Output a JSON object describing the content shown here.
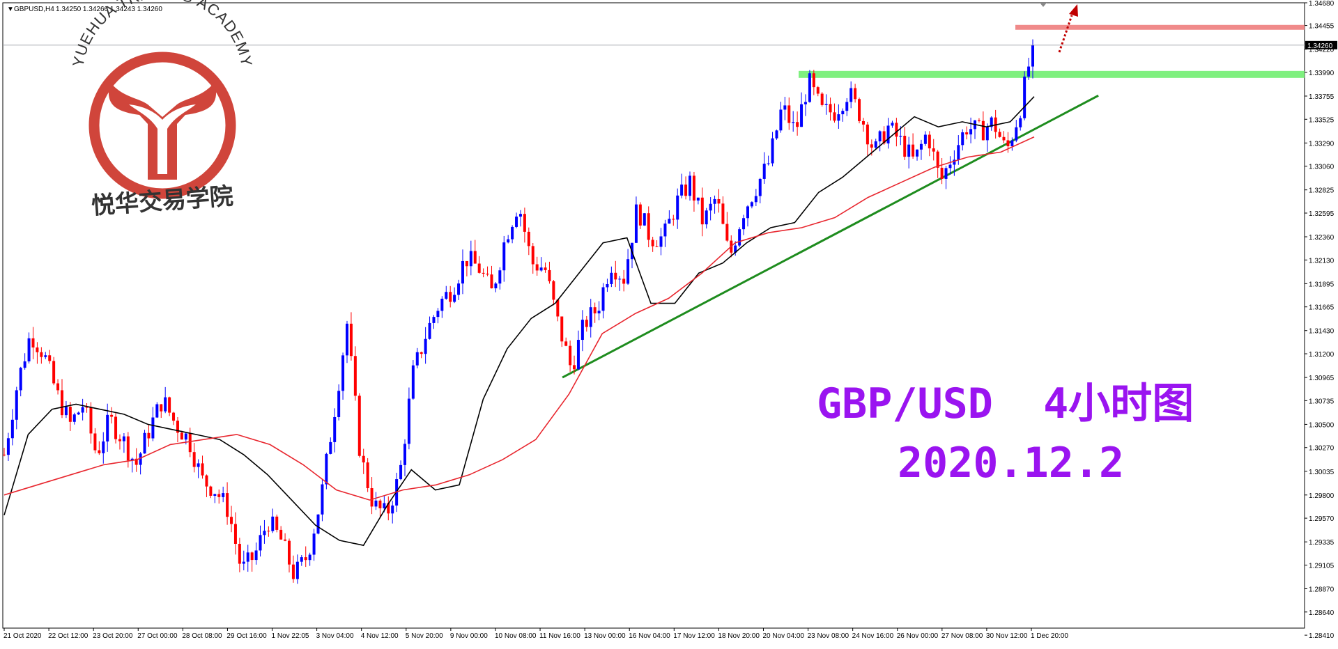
{
  "header": {
    "symbol_label": "GBPUSD,H4",
    "ohlc_label": "1.34250 1.34266 1.34243 1.34260"
  },
  "logo": {
    "arc_text": "YUEHUA TRADING ACADEMY",
    "cn_text": "悦华交易学院",
    "color": "#d0453b"
  },
  "annotation": {
    "line1": "GBP/USD  4小时图",
    "line2": "2020.12.2",
    "color": "#9a14f0"
  },
  "colors": {
    "bull": "#0000ff",
    "bear": "#ff0000",
    "ma_fast": "#000000",
    "ma_slow": "#e8262e",
    "trendline": "#1e8c1e",
    "support": "#7ff07f",
    "resistance": "#f08a8a",
    "arrow": "#c00000"
  },
  "chart_data": {
    "type": "candlestick",
    "symbol": "GBPUSD",
    "timeframe": "H4",
    "last_price": "1.34260",
    "ylim": [
      1.2848,
      1.3468
    ],
    "y_ticks": [
      "1.34680",
      "1.34455",
      "1.34220",
      "1.33990",
      "1.33755",
      "1.33525",
      "1.33290",
      "1.33060",
      "1.32825",
      "1.32595",
      "1.32360",
      "1.32130",
      "1.31895",
      "1.31665",
      "1.31430",
      "1.31200",
      "1.30965",
      "1.30735",
      "1.30500",
      "1.30270",
      "1.30035",
      "1.29800",
      "1.29570",
      "1.29335",
      "1.29105",
      "1.28870",
      "1.28640",
      "1.28410"
    ],
    "x_ticks": [
      "21 Oct 2020",
      "22 Oct 12:00",
      "23 Oct 20:00",
      "27 Oct 00:00",
      "28 Oct 08:00",
      "29 Oct 16:00",
      "1 Nov 22:05",
      "3 Nov 04:00",
      "4 Nov 12:00",
      "5 Nov 20:00",
      "9 Nov 00:00",
      "10 Nov 08:00",
      "11 Nov 16:00",
      "13 Nov 00:00",
      "16 Nov 04:00",
      "17 Nov 12:00",
      "18 Nov 20:00",
      "20 Nov 04:00",
      "23 Nov 08:00",
      "24 Nov 16:00",
      "26 Nov 00:00",
      "27 Nov 08:00",
      "30 Nov 12:00",
      "1 Dec 20:00"
    ],
    "close_path": [
      1.302,
      1.309,
      1.314,
      1.312,
      1.308,
      1.305,
      1.307,
      1.302,
      1.3055,
      1.3035,
      1.301,
      1.3045,
      1.3075,
      1.305,
      1.3035,
      1.2995,
      1.2985,
      1.2965,
      1.2905,
      1.292,
      1.2955,
      1.2935,
      1.29,
      1.292,
      1.2975,
      1.306,
      1.315,
      1.302,
      1.297,
      1.296,
      1.3,
      1.31,
      1.314,
      1.317,
      1.3185,
      1.3215,
      1.3205,
      1.318,
      1.3235,
      1.327,
      1.321,
      1.3205,
      1.315,
      1.3105,
      1.315,
      1.3165,
      1.321,
      1.3195,
      1.3265,
      1.3235,
      1.3235,
      1.327,
      1.329,
      1.325,
      1.3275,
      1.3215,
      1.326,
      1.3285,
      1.331,
      1.3365,
      1.334,
      1.339,
      1.336,
      1.336,
      1.338,
      1.3355,
      1.332,
      1.3345,
      1.333,
      1.331,
      1.334,
      1.329,
      1.332,
      1.3345,
      1.334,
      1.335,
      1.332,
      1.336,
      1.3426
    ],
    "ma_fast": [
      1.296,
      1.304,
      1.3065,
      1.307,
      1.3065,
      1.306,
      1.305,
      1.3045,
      1.304,
      1.3035,
      1.302,
      1.3,
      1.2975,
      1.295,
      1.2935,
      1.293,
      1.297,
      1.3005,
      1.2985,
      1.299,
      1.3075,
      1.3125,
      1.3155,
      1.317,
      1.32,
      1.323,
      1.3235,
      1.317,
      1.317,
      1.32,
      1.321,
      1.323,
      1.3245,
      1.325,
      1.328,
      1.3295,
      1.3315,
      1.3335,
      1.3355,
      1.3345,
      1.335,
      1.3345,
      1.335,
      1.3375
    ],
    "ma_slow": [
      1.298,
      1.299,
      1.3,
      1.301,
      1.3015,
      1.303,
      1.3035,
      1.304,
      1.303,
      1.301,
      1.2985,
      1.2975,
      1.2985,
      1.299,
      1.3,
      1.3015,
      1.3035,
      1.308,
      1.314,
      1.316,
      1.3175,
      1.32,
      1.323,
      1.324,
      1.3245,
      1.3255,
      1.3275,
      1.329,
      1.3305,
      1.3315,
      1.332,
      1.3335
    ],
    "support_level": 1.3397,
    "resistance_level": 1.3444,
    "trendline": [
      [
        12.5,
        1.30965
      ],
      [
        24.5,
        1.3376
      ]
    ]
  }
}
